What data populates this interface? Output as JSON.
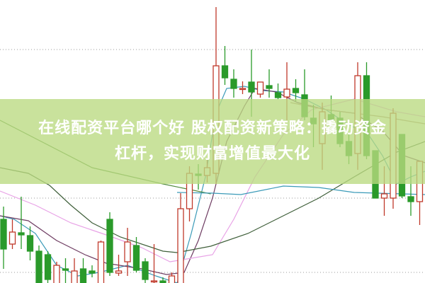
{
  "title": {
    "line1": "在线配资平台哪个好 股权配资新策略：撬动资金",
    "line2": "杠杆，实现财富增值最大化"
  },
  "colors": {
    "up": "#c0392b",
    "down": "#2a9a2a",
    "banner": "#bada80",
    "grid": "#999999"
  },
  "chart_data": {
    "type": "candlestick",
    "title": "",
    "xlabel": "",
    "ylabel": "",
    "ylim": [
      0,
      40
    ],
    "grid": true,
    "grid_lines": [
      33,
      12,
      1.5
    ],
    "candles": [
      [
        9.0,
        10.8,
        2.0,
        4.8
      ],
      [
        5.5,
        9.0,
        4.8,
        7.2
      ],
      [
        7.1,
        12.2,
        4.8,
        6.8
      ],
      [
        6.7,
        8.0,
        3.2,
        4.5
      ],
      [
        4.5,
        5.3,
        -0.5,
        0
      ],
      [
        4.0,
        4.5,
        -0.5,
        0.5
      ],
      [
        -0.5,
        3.0,
        -0.5,
        2.5
      ],
      [
        2.0,
        3.5,
        -0.5,
        1.8
      ],
      [
        -0.5,
        3.5,
        -0.5,
        1.7
      ],
      [
        2.0,
        3.5,
        -0.5,
        -0.5
      ],
      [
        1.7,
        2.5,
        0.8,
        1.4
      ],
      [
        -0.5,
        6.0,
        -0.5,
        5.8
      ],
      [
        9.0,
        10.0,
        1.0,
        1.5
      ],
      [
        1.4,
        4.0,
        1.0,
        1.7
      ],
      [
        3.0,
        7.8,
        1.0,
        5.8
      ],
      [
        5.3,
        6.5,
        1.5,
        1.8
      ],
      [
        3.0,
        3.5,
        -0.5,
        0.5
      ],
      [
        0.2,
        5.5,
        -0.5,
        0.3
      ],
      [
        0.3,
        0.8,
        -0.5,
        -0.5
      ],
      [
        -0.5,
        1.5,
        -0.5,
        1.0
      ],
      [
        -0.5,
        12.7,
        -0.5,
        10.5
      ],
      [
        10.5,
        16.5,
        8.7,
        15.5
      ],
      [
        15.4,
        16.8,
        13.2,
        15.2
      ],
      [
        15.2,
        17.4,
        14.2,
        16.3
      ],
      [
        15.5,
        39.0,
        14.0,
        30.7
      ],
      [
        30.7,
        33.5,
        28.0,
        29.0
      ],
      [
        28.8,
        30.2,
        26.2,
        27.5
      ],
      [
        27.4,
        28.5,
        26.7,
        27.5
      ],
      [
        28.4,
        33.0,
        23.5,
        27.0
      ],
      [
        26.7,
        28.4,
        26.2,
        28.4
      ],
      [
        27.9,
        30.2,
        26.2,
        27.5
      ],
      [
        26.9,
        28.2,
        26.0,
        26.2
      ],
      [
        26.3,
        31.2,
        23.0,
        27.4
      ],
      [
        27.5,
        28.8,
        25.7,
        26.9
      ],
      [
        26.6,
        30.2,
        23.0,
        23.5
      ],
      [
        23.3,
        25.2,
        19.2,
        22.5
      ],
      [
        19.7,
        25.5,
        16.0,
        24.2
      ],
      [
        23.8,
        26.5,
        22.7,
        23.0
      ],
      [
        23.3,
        24.2,
        19.2,
        19.7
      ],
      [
        20.0,
        21.0,
        16.8,
        18.0
      ],
      [
        18.3,
        31.2,
        16.0,
        29.3
      ],
      [
        29.3,
        31.2,
        17.5,
        18.0
      ],
      [
        18.7,
        18.7,
        12.0,
        12.0
      ],
      [
        12.0,
        16.5,
        9.5,
        12.6
      ],
      [
        12.0,
        24.7,
        10.5,
        24.0
      ],
      [
        21.0,
        21.0,
        12.0,
        12.3
      ],
      [
        12.2,
        16.5,
        9.5,
        11.5
      ],
      [
        11.5,
        17.2,
        8.2,
        17.2
      ]
    ],
    "moving_averages": [
      {
        "color": "#3a9ab8",
        "points": [
          [
            -0.4,
            9.5
          ],
          [
            1.2,
            9.0
          ],
          [
            3.6,
            7.0
          ],
          [
            6,
            2.5
          ],
          [
            8.4,
            1.0
          ],
          [
            10.8,
            1.5
          ],
          [
            14,
            2.5
          ],
          [
            17.2,
            1.0
          ],
          [
            19.6,
            0
          ],
          [
            21.2,
            7.0
          ],
          [
            22.8,
            15
          ],
          [
            24,
            24
          ],
          [
            25.2,
            27.5
          ],
          [
            27.2,
            27.8
          ],
          [
            29.2,
            27.2
          ],
          [
            31.6,
            27
          ],
          [
            34,
            26
          ],
          [
            36.4,
            24.5
          ],
          [
            38.8,
            22.5
          ],
          [
            41.2,
            21
          ],
          [
            42.8,
            18
          ],
          [
            44.4,
            14
          ],
          [
            46,
            15
          ],
          [
            47.6,
            15.8
          ]
        ]
      },
      {
        "color": "#6e3c62",
        "points": [
          [
            -0.4,
            9.5
          ],
          [
            2.8,
            8.8
          ],
          [
            6,
            6
          ],
          [
            9.2,
            4
          ],
          [
            11.6,
            2.8
          ],
          [
            15.6,
            2
          ],
          [
            18.4,
            1.2
          ],
          [
            20.4,
            1.5
          ],
          [
            22,
            6
          ],
          [
            23.6,
            12
          ],
          [
            25.2,
            20
          ],
          [
            27.2,
            25
          ],
          [
            28.4,
            27.5
          ],
          [
            30.8,
            27
          ],
          [
            33.2,
            25.5
          ],
          [
            36.4,
            24.5
          ],
          [
            39.6,
            24
          ],
          [
            42.8,
            21.5
          ],
          [
            45.2,
            18
          ],
          [
            47.6,
            17
          ]
        ]
      },
      {
        "color": "#e8a2e6",
        "points": [
          [
            -0.4,
            13
          ],
          [
            3.6,
            11
          ],
          [
            7.6,
            8.5
          ],
          [
            11.6,
            6.8
          ],
          [
            15.6,
            5
          ],
          [
            18.8,
            3
          ],
          [
            21.2,
            3.5
          ],
          [
            23.6,
            4
          ],
          [
            26,
            9
          ],
          [
            28.4,
            15
          ],
          [
            31.6,
            21
          ],
          [
            34.8,
            24.5
          ],
          [
            39.6,
            26
          ],
          [
            44.4,
            24.2
          ],
          [
            47.6,
            23.5
          ]
        ]
      },
      {
        "color": "#3f5f3a",
        "points": [
          [
            -0.4,
            16.3
          ],
          [
            2.8,
            15.5
          ],
          [
            5.2,
            13.8
          ],
          [
            7.6,
            11
          ],
          [
            10,
            8.5
          ],
          [
            13.2,
            6.5
          ],
          [
            18,
            4.5
          ],
          [
            19.6,
            4.3
          ],
          [
            23.4,
            5.2
          ],
          [
            27.6,
            7
          ],
          [
            31.6,
            9.5
          ],
          [
            35.6,
            12
          ],
          [
            39.6,
            15
          ],
          [
            44.4,
            18.5
          ],
          [
            47.6,
            20
          ]
        ]
      },
      {
        "color": "#4f8a3c",
        "points": [
          [
            -0.4,
            23
          ],
          [
            10,
            16.3
          ],
          [
            18,
            14
          ],
          [
            23.4,
            12.6
          ]
        ]
      },
      {
        "color": "#3a9ab8",
        "points": [
          [
            19.6,
            12.8
          ],
          [
            23.6,
            12.7
          ],
          [
            26.8,
            12.5
          ],
          [
            31.6,
            13.7
          ],
          [
            35.6,
            13.5
          ],
          [
            39.6,
            12.8
          ],
          [
            47.6,
            12.5
          ]
        ]
      },
      {
        "color": "#b09080",
        "points": [
          [
            32.4,
            25.5
          ],
          [
            36.4,
            24.5
          ],
          [
            39.6,
            24
          ],
          [
            42.8,
            23.5
          ],
          [
            47.6,
            22.5
          ]
        ]
      }
    ]
  }
}
